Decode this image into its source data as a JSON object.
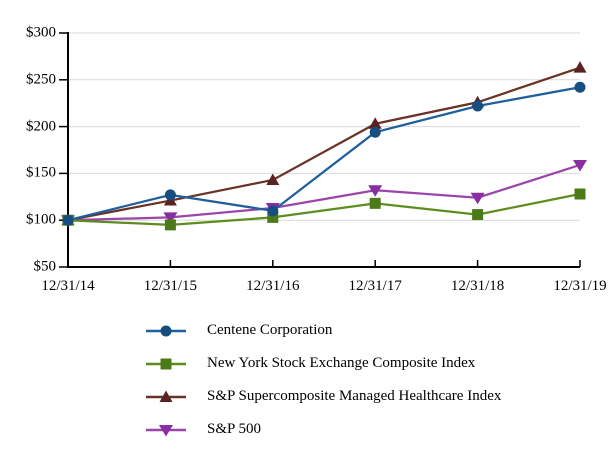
{
  "chart_data": {
    "type": "line",
    "title": "",
    "xlabel": "",
    "ylabel": "",
    "categories": [
      "12/31/14",
      "12/31/15",
      "12/31/16",
      "12/31/17",
      "12/31/18",
      "12/31/19"
    ],
    "series": [
      {
        "name": "Centene Corporation",
        "marker": "circle",
        "line_color": "#1F5F9E",
        "marker_color": "#174E80",
        "values": [
          100,
          127,
          110,
          194,
          222,
          242
        ]
      },
      {
        "name": "New York Stock Exchange Composite Index",
        "marker": "square",
        "line_color": "#5E8C1E",
        "marker_color": "#4C7A19",
        "values": [
          100,
          95,
          103,
          118,
          106,
          128
        ]
      },
      {
        "name": "S&P Supercomposite Managed Healthcare Index",
        "marker": "triangle-up",
        "line_color": "#6B3226",
        "marker_color": "#5A2221",
        "values": [
          100,
          121,
          143,
          203,
          226,
          263
        ]
      },
      {
        "name": "S&P 500",
        "marker": "triangle-down",
        "line_color": "#9A46A8",
        "marker_color": "#872FA0",
        "values": [
          100,
          103,
          113,
          132,
          124,
          159
        ]
      }
    ],
    "ylim": [
      50,
      300
    ],
    "y_tick_step": 50,
    "y_tick_labels": [
      "$50",
      "$100",
      "$150",
      "$200",
      "$250",
      "$300"
    ],
    "grid": "horizontal",
    "gridline_color": "#D9D9D9",
    "axis_color": "#000000",
    "text_color": "#000000",
    "legend_position": "bottom-left",
    "draw_order": "reverse-legend"
  }
}
